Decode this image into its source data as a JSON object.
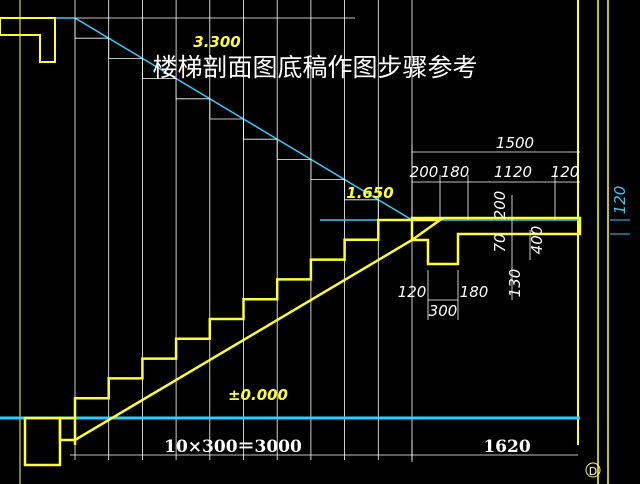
{
  "title": "楼梯剖面图底稿作图步骤参考",
  "elevations": {
    "top": "3.300",
    "landing": "1.650",
    "ground": "±0.000"
  },
  "dimensions": {
    "landing_total": "1500",
    "landing_parts": [
      "200",
      "180",
      "1120",
      "120"
    ],
    "right_vertical": "120",
    "vertical_200": "200",
    "vertical_70": "70",
    "vertical_400": "400",
    "vertical_130": "130",
    "beam_left": "120",
    "beam_right": "180",
    "beam_width": "300",
    "flight": "10×300＝3000",
    "bottom_right": "1620"
  },
  "axis_label": "D"
}
